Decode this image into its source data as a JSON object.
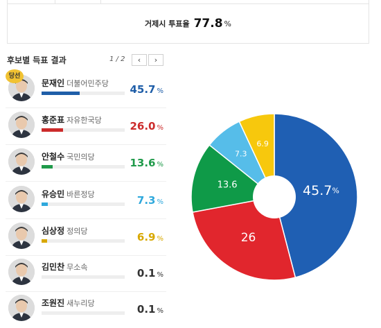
{
  "turnout": {
    "label": "거제시 투표율",
    "value": "77.8",
    "unit": "%"
  },
  "section": {
    "title": "후보별 득표 결과",
    "pager": "1 / 2",
    "prev_icon": "chevron-left-icon",
    "next_icon": "chevron-right-icon",
    "prev_glyph": "‹",
    "next_glyph": "›"
  },
  "winner_badge": "당선",
  "candidates": [
    {
      "name": "문재인",
      "party": "더불어민주당",
      "pct": "45.7",
      "unit": "%",
      "ratio": 0.457,
      "color": "#1f5ea8",
      "winner": true
    },
    {
      "name": "홍준표",
      "party": "자유한국당",
      "pct": "26.0",
      "unit": "%",
      "ratio": 0.26,
      "color": "#cc2b2b"
    },
    {
      "name": "안철수",
      "party": "국민의당",
      "pct": "13.6",
      "unit": "%",
      "ratio": 0.136,
      "color": "#1f9a4a"
    },
    {
      "name": "유승민",
      "party": "바른정당",
      "pct": "7.3",
      "unit": "%",
      "ratio": 0.073,
      "color": "#2fa8dc"
    },
    {
      "name": "심상정",
      "party": "정의당",
      "pct": "6.9",
      "unit": "%",
      "ratio": 0.069,
      "color": "#d8a800"
    },
    {
      "name": "김민찬",
      "party": "무소속",
      "pct": "0.1",
      "unit": "%",
      "ratio": 0.001,
      "color": "#333333"
    },
    {
      "name": "조원진",
      "party": "새누리당",
      "pct": "0.1",
      "unit": "%",
      "ratio": 0.001,
      "color": "#333333"
    }
  ],
  "chart_data": {
    "type": "pie",
    "donut": true,
    "slices": [
      {
        "label": "45.7",
        "suffix": "%",
        "value": 45.7,
        "color": "#1f5fb3"
      },
      {
        "label": "26",
        "value": 26.0,
        "color": "#e1262d"
      },
      {
        "label": "13.6",
        "value": 13.6,
        "color": "#0f9a48"
      },
      {
        "label": "7.3",
        "value": 7.3,
        "color": "#56bde9"
      },
      {
        "label": "6.9",
        "value": 6.9,
        "color": "#f7c80d"
      }
    ]
  }
}
